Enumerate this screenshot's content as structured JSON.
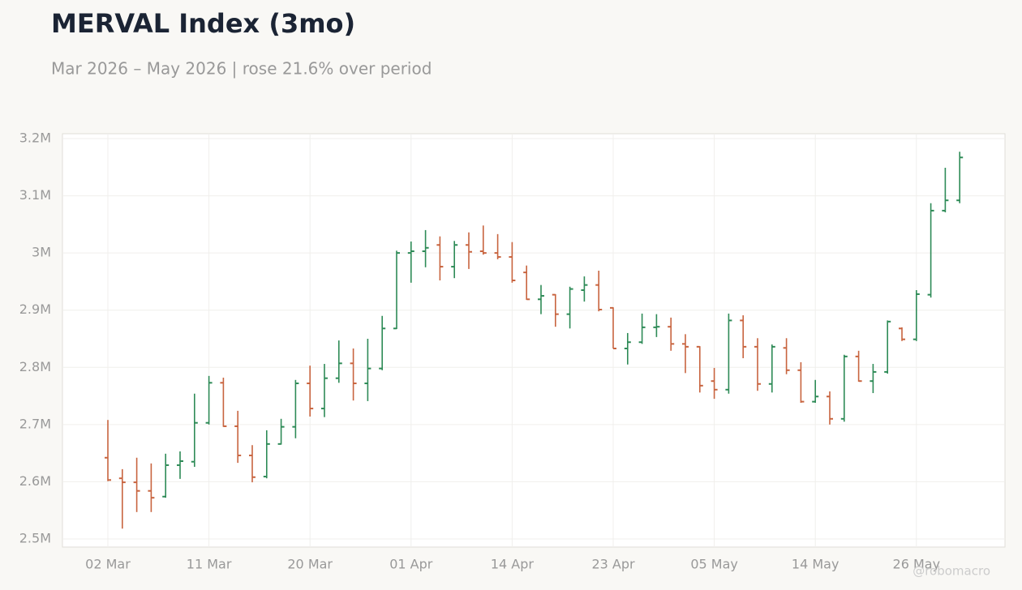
{
  "chart_data": {
    "type": "ohlc",
    "title": "MERVAL Index (3mo)",
    "subtitle": "Mar 2026 – May 2026 | rose 21.6% over period",
    "watermark": "@robomacro",
    "up_color": "#2e8b57",
    "down_color": "#c8643f",
    "grid": true,
    "categories": [
      "02 Mar",
      null,
      null,
      null,
      null,
      null,
      null,
      "11 Mar",
      null,
      null,
      null,
      null,
      null,
      null,
      "20 Mar",
      null,
      null,
      null,
      null,
      null,
      null,
      "01 Apr",
      null,
      null,
      null,
      null,
      null,
      null,
      "14 Apr",
      null,
      null,
      null,
      null,
      null,
      null,
      "23 Apr",
      null,
      null,
      null,
      null,
      null,
      null,
      "05 May",
      null,
      null,
      null,
      null,
      null,
      null,
      "14 May",
      null,
      null,
      null,
      null,
      null,
      null,
      "26 May",
      null,
      null,
      null
    ],
    "open": [
      2642000,
      2606000,
      2599000,
      2584000,
      2574000,
      2629000,
      2635000,
      2703000,
      2773000,
      2697000,
      2646000,
      2609000,
      2666000,
      2696000,
      2772000,
      2728000,
      2781000,
      2807000,
      2772000,
      2798000,
      2868000,
      3000000,
      3003000,
      3014000,
      2976000,
      3014000,
      3003000,
      3000000,
      2993000,
      2966000,
      2919000,
      2927000,
      2893000,
      2935000,
      2944000,
      2904000,
      2833000,
      2844000,
      2870000,
      2871000,
      2841000,
      2836000,
      2776000,
      2761000,
      2882000,
      2836000,
      2771000,
      2834000,
      2795000,
      2740000,
      2749000,
      2710000,
      2819000,
      2776000,
      2792000,
      2868000,
      2849000,
      2927000,
      3074000,
      3092000
    ],
    "high": [
      2708000,
      2622000,
      2642000,
      2632000,
      2649000,
      2653000,
      2754000,
      2785000,
      2782000,
      2724000,
      2664000,
      2690000,
      2710000,
      2778000,
      2803000,
      2806000,
      2847000,
      2833000,
      2850000,
      2890000,
      3004000,
      3020000,
      3040000,
      3029000,
      3021000,
      3036000,
      3048000,
      3033000,
      3019000,
      2978000,
      2944000,
      2928000,
      2941000,
      2959000,
      2969000,
      2905000,
      2860000,
      2894000,
      2893000,
      2887000,
      2858000,
      2837000,
      2799000,
      2894000,
      2891000,
      2851000,
      2840000,
      2851000,
      2809000,
      2778000,
      2758000,
      2822000,
      2829000,
      2806000,
      2882000,
      2870000,
      2935000,
      3087000,
      3149000,
      3177000
    ],
    "low": [
      2601000,
      2518000,
      2547000,
      2547000,
      2572000,
      2605000,
      2626000,
      2700000,
      2696000,
      2633000,
      2599000,
      2606000,
      2665000,
      2676000,
      2714000,
      2713000,
      2773000,
      2742000,
      2741000,
      2795000,
      2867000,
      2948000,
      2975000,
      2952000,
      2956000,
      2972000,
      2997000,
      2989000,
      2948000,
      2918000,
      2893000,
      2871000,
      2868000,
      2915000,
      2898000,
      2833000,
      2805000,
      2841000,
      2853000,
      2829000,
      2790000,
      2756000,
      2745000,
      2754000,
      2816000,
      2759000,
      2756000,
      2788000,
      2738000,
      2738000,
      2700000,
      2705000,
      2775000,
      2755000,
      2789000,
      2846000,
      2846000,
      2922000,
      3071000,
      3087000
    ],
    "close": [
      2603000,
      2599000,
      2584000,
      2572000,
      2629000,
      2636000,
      2703000,
      2773000,
      2697000,
      2646000,
      2608000,
      2666000,
      2696000,
      2772000,
      2728000,
      2781000,
      2807000,
      2772000,
      2798000,
      2868000,
      3000000,
      3003000,
      3009000,
      2976000,
      3014000,
      3002000,
      3000000,
      2993000,
      2952000,
      2919000,
      2925000,
      2893000,
      2937000,
      2944000,
      2901000,
      2833000,
      2844000,
      2870000,
      2871000,
      2841000,
      2836000,
      2768000,
      2761000,
      2882000,
      2836000,
      2771000,
      2836000,
      2795000,
      2740000,
      2749000,
      2710000,
      2819000,
      2776000,
      2792000,
      2880000,
      2849000,
      2928000,
      3074000,
      3092000,
      3167000
    ],
    "ylim": [
      2485800,
      3208500
    ],
    "yticks": [
      {
        "value": 2500000,
        "label": "2.5M"
      },
      {
        "value": 2600000,
        "label": "2.6M"
      },
      {
        "value": 2700000,
        "label": "2.7M"
      },
      {
        "value": 2800000,
        "label": "2.8M"
      },
      {
        "value": 2900000,
        "label": "2.9M"
      },
      {
        "value": 3000000,
        "label": "3M"
      },
      {
        "value": 3100000,
        "label": "3.1M"
      },
      {
        "value": 3200000,
        "label": "3.2M"
      }
    ]
  }
}
